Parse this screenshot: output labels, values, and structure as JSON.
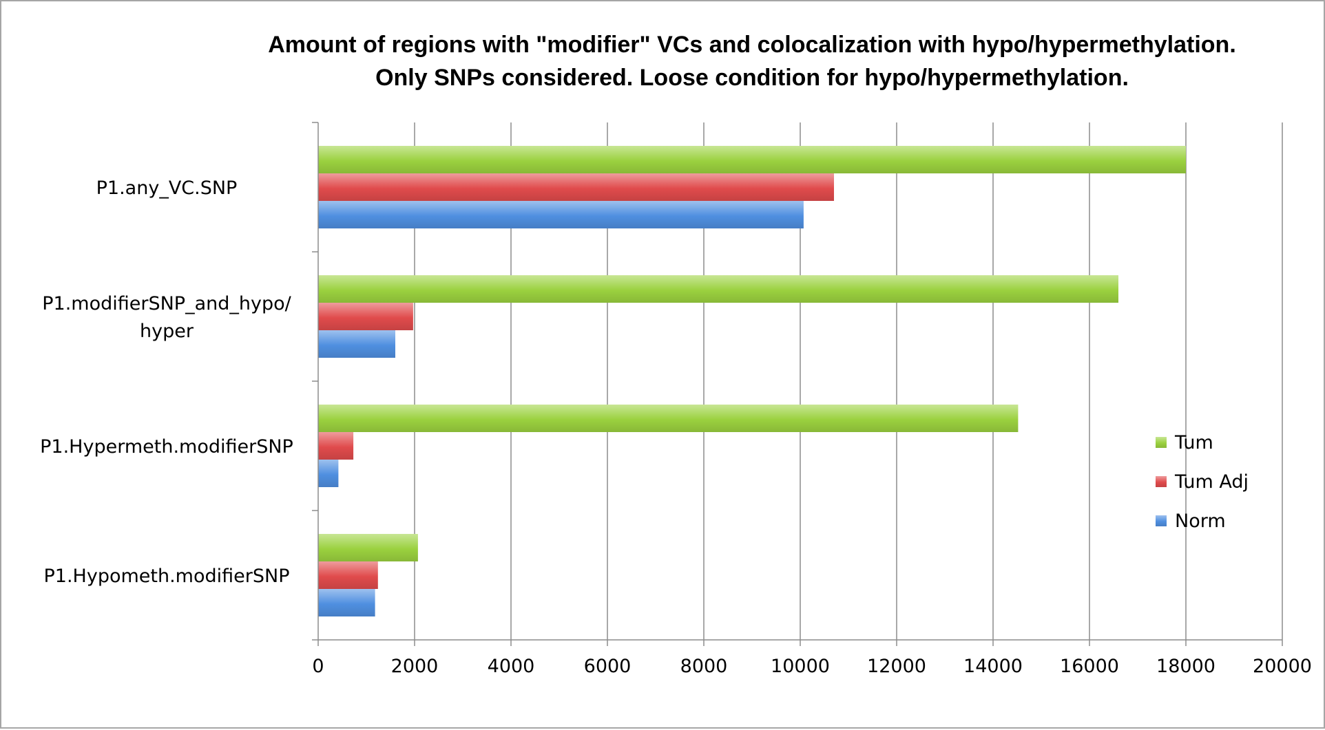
{
  "chart_data": {
    "type": "bar",
    "orientation": "horizontal",
    "title": "Amount of regions with \"modifier\" VCs and colocalization with hypo/hypermethylation.",
    "subtitle": "Only SNPs considered. Loose condition for hypo/hypermethylation.",
    "categories": [
      "P1.any_VC.SNP",
      "P1.modifierSNP_and_hypo/hyper",
      "P1.Hypermeth.modifierSNP",
      "P1.Hypometh.modifierSNP"
    ],
    "category_lines": [
      [
        "P1.any_VC.SNP"
      ],
      [
        "P1.modifierSNP_and_hypo/",
        "hyper"
      ],
      [
        "P1.Hypermeth.modifierSNP"
      ],
      [
        "P1.Hypometh.modifierSNP"
      ]
    ],
    "series": [
      {
        "name": "Tum",
        "color": "#9bd13f",
        "values": [
          18000,
          16600,
          14520,
          2070
        ]
      },
      {
        "name": "Tum Adj",
        "color": "#e04b4c",
        "values": [
          10700,
          1970,
          730,
          1240
        ]
      },
      {
        "name": "Norm",
        "color": "#4f8fe0",
        "values": [
          10070,
          1600,
          420,
          1180
        ]
      }
    ],
    "xlim": [
      0,
      20000
    ],
    "xticks": [
      0,
      2000,
      4000,
      6000,
      8000,
      10000,
      12000,
      14000,
      16000,
      18000,
      20000
    ],
    "xlabel": "",
    "ylabel": "",
    "grid": "vertical",
    "legend_position": "right"
  }
}
